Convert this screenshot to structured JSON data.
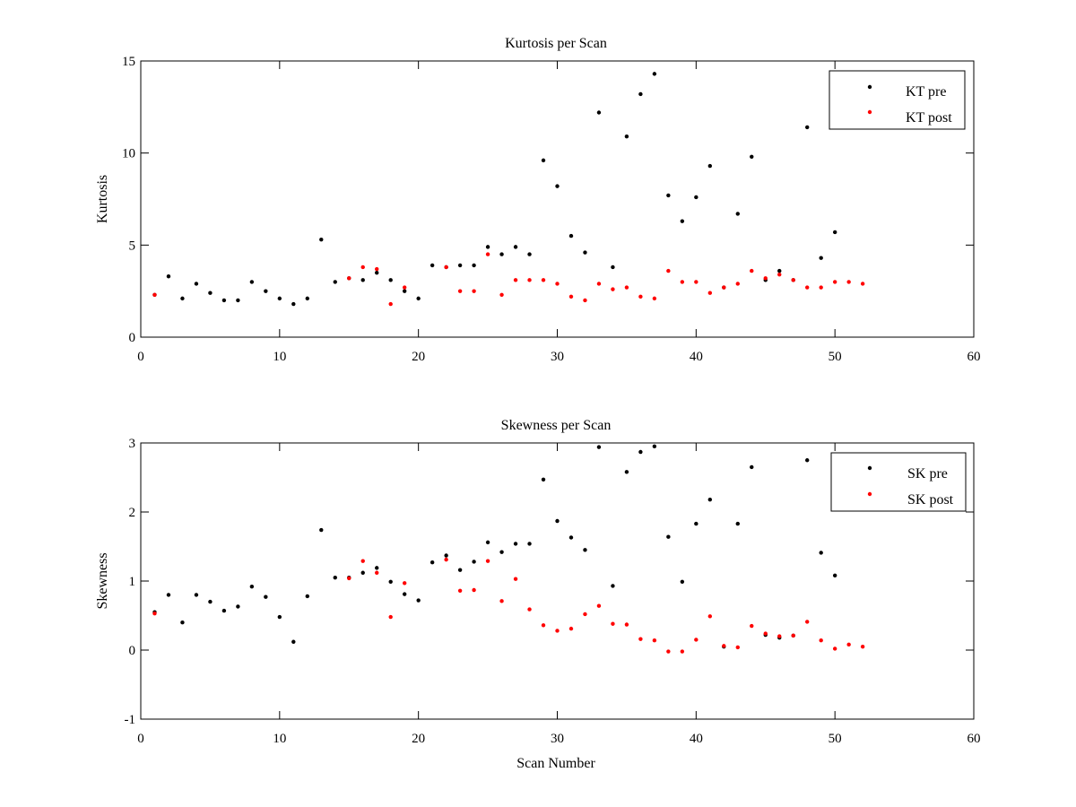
{
  "colors": {
    "pre": "#000000",
    "post": "#ff0000"
  },
  "chart_data": [
    {
      "type": "scatter",
      "title": "Kurtosis per Scan",
      "xlabel": "",
      "ylabel": "Kurtosis",
      "xlim": [
        0,
        60
      ],
      "ylim": [
        0,
        15
      ],
      "xticks": [
        0,
        10,
        20,
        30,
        40,
        50,
        60
      ],
      "yticks": [
        0,
        5,
        10,
        15
      ],
      "legend_position": "top-right",
      "series": [
        {
          "name": "KT pre",
          "color": "#000000",
          "x": [
            1,
            2,
            3,
            4,
            5,
            6,
            7,
            8,
            9,
            10,
            11,
            12,
            13,
            14,
            15,
            16,
            17,
            18,
            19,
            20,
            21,
            22,
            23,
            24,
            25,
            26,
            27,
            28,
            29,
            30,
            31,
            32,
            33,
            34,
            35,
            36,
            37,
            38,
            39,
            40,
            41,
            42,
            43,
            44,
            45,
            46,
            47,
            48,
            49,
            50
          ],
          "y": [
            2.3,
            3.3,
            2.1,
            2.9,
            2.4,
            2.0,
            2.0,
            3.0,
            2.5,
            2.1,
            1.8,
            2.1,
            5.3,
            3.0,
            3.2,
            3.1,
            3.5,
            3.1,
            2.5,
            2.1,
            3.9,
            3.8,
            3.9,
            3.9,
            4.9,
            4.5,
            4.9,
            4.5,
            9.6,
            8.2,
            5.5,
            4.6,
            12.2,
            3.8,
            10.9,
            13.2,
            14.3,
            7.7,
            6.3,
            7.6,
            9.3,
            2.7,
            6.7,
            9.8,
            3.1,
            3.6,
            3.1,
            11.4,
            4.3,
            5.7
          ]
        },
        {
          "name": "KT post",
          "color": "#ff0000",
          "x": [
            1,
            15,
            16,
            17,
            18,
            19,
            22,
            23,
            24,
            25,
            26,
            27,
            28,
            29,
            30,
            31,
            32,
            33,
            34,
            35,
            36,
            37,
            38,
            39,
            40,
            41,
            42,
            43,
            44,
            45,
            46,
            47,
            48,
            49,
            50,
            51,
            52
          ],
          "y": [
            2.3,
            3.2,
            3.8,
            3.7,
            1.8,
            2.7,
            3.8,
            2.5,
            2.5,
            4.5,
            2.3,
            3.1,
            3.1,
            3.1,
            2.9,
            2.2,
            2.0,
            2.9,
            2.6,
            2.7,
            2.2,
            2.1,
            3.6,
            3.0,
            3.0,
            2.4,
            2.7,
            2.9,
            3.6,
            3.2,
            3.4,
            3.1,
            2.7,
            2.7,
            3.0,
            3.0,
            2.9
          ]
        }
      ]
    },
    {
      "type": "scatter",
      "title": "Skewness per Scan",
      "xlabel": "Scan Number",
      "ylabel": "Skewness",
      "xlim": [
        0,
        60
      ],
      "ylim": [
        -1,
        3
      ],
      "xticks": [
        0,
        10,
        20,
        30,
        40,
        50,
        60
      ],
      "yticks": [
        -1,
        0,
        1,
        2,
        3
      ],
      "legend_position": "top-right",
      "series": [
        {
          "name": "SK pre",
          "color": "#000000",
          "x": [
            1,
            2,
            3,
            4,
            5,
            6,
            7,
            8,
            9,
            10,
            11,
            12,
            13,
            14,
            15,
            16,
            17,
            18,
            19,
            20,
            21,
            22,
            23,
            24,
            25,
            26,
            27,
            28,
            29,
            30,
            31,
            32,
            33,
            34,
            35,
            36,
            37,
            38,
            39,
            40,
            41,
            42,
            43,
            44,
            45,
            46,
            47,
            48,
            49,
            50
          ],
          "y": [
            0.55,
            0.8,
            0.4,
            0.8,
            0.7,
            0.57,
            0.63,
            0.92,
            0.77,
            0.48,
            0.12,
            0.78,
            1.74,
            1.05,
            1.05,
            1.12,
            1.19,
            0.99,
            0.81,
            0.72,
            1.27,
            1.37,
            1.16,
            1.28,
            1.56,
            1.42,
            1.54,
            1.54,
            2.47,
            1.87,
            1.63,
            1.45,
            2.94,
            0.93,
            2.58,
            2.87,
            2.95,
            1.64,
            0.99,
            1.83,
            2.18,
            0.05,
            1.83,
            2.65,
            0.22,
            0.18,
            0.21,
            2.75,
            1.41,
            1.08
          ]
        },
        {
          "name": "SK post",
          "color": "#ff0000",
          "x": [
            1,
            15,
            16,
            17,
            18,
            19,
            22,
            23,
            24,
            25,
            26,
            27,
            28,
            29,
            30,
            31,
            32,
            33,
            34,
            35,
            36,
            37,
            38,
            39,
            40,
            41,
            42,
            43,
            44,
            45,
            46,
            47,
            48,
            49,
            50,
            51,
            52
          ],
          "y": [
            0.53,
            1.04,
            1.29,
            1.12,
            0.48,
            0.97,
            1.31,
            0.86,
            0.87,
            1.29,
            0.71,
            1.03,
            0.59,
            0.36,
            0.28,
            0.31,
            0.52,
            0.64,
            0.38,
            0.37,
            0.16,
            0.14,
            -0.02,
            -0.02,
            0.15,
            0.49,
            0.06,
            0.04,
            0.35,
            0.24,
            0.2,
            0.21,
            0.41,
            0.14,
            0.02,
            0.08,
            0.05
          ]
        }
      ]
    }
  ]
}
